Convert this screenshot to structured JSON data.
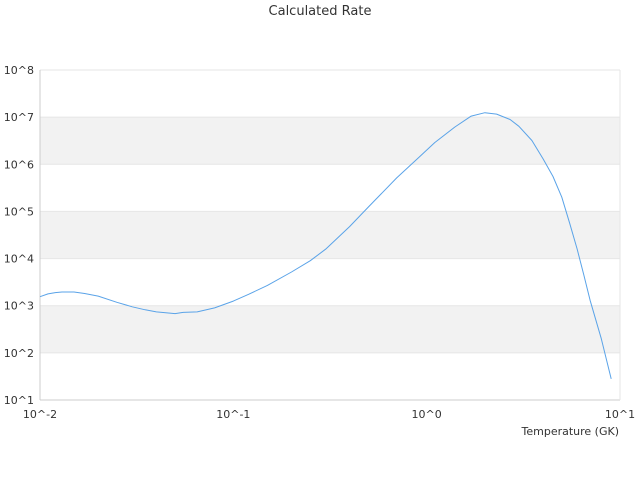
{
  "chart_data": {
    "type": "line",
    "title": "Calculated Rate",
    "xlabel": "Temperature (GK)",
    "ylabel": "",
    "x_scale": "log",
    "y_scale": "log",
    "xlim": [
      0.01,
      10
    ],
    "ylim": [
      10,
      100000000
    ],
    "x_ticks": [
      "10^-2",
      "10^-1",
      "10^0",
      "10^1"
    ],
    "y_ticks": [
      "10^1",
      "10^2",
      "10^3",
      "10^4",
      "10^5",
      "10^6",
      "10^7",
      "10^8"
    ],
    "grid": "alternating horizontal bands",
    "legend": "none",
    "colors": {
      "line": "#5aa3e8",
      "band": "#f2f2f2",
      "axis": "#cccccc"
    },
    "series": [
      {
        "x": [
          0.01,
          0.011,
          0.012,
          0.013,
          0.015,
          0.017,
          0.02,
          0.025,
          0.03,
          0.035,
          0.04,
          0.05,
          0.055,
          0.065,
          0.08,
          0.1,
          0.12,
          0.15,
          0.2,
          0.25,
          0.3,
          0.4,
          0.5,
          0.7,
          0.9,
          1.1,
          1.4,
          1.7,
          2.0,
          2.3,
          2.7,
          3.0,
          3.5,
          4.0,
          4.5,
          5.0,
          5.5,
          6.0,
          6.5,
          7.0,
          8.0,
          9.0
        ],
        "y": [
          1550,
          1780,
          1900,
          1950,
          1950,
          1820,
          1600,
          1180,
          950,
          820,
          740,
          680,
          720,
          740,
          900,
          1250,
          1750,
          2700,
          5200,
          9000,
          15800,
          48000,
          125000,
          515000,
          1330000,
          2880000,
          6170000,
          10500000,
          12400000,
          11600000,
          8900000,
          6400000,
          3200000,
          1300000,
          550000,
          200000,
          55000,
          16000,
          4500,
          1300,
          200,
          28
        ]
      }
    ]
  }
}
